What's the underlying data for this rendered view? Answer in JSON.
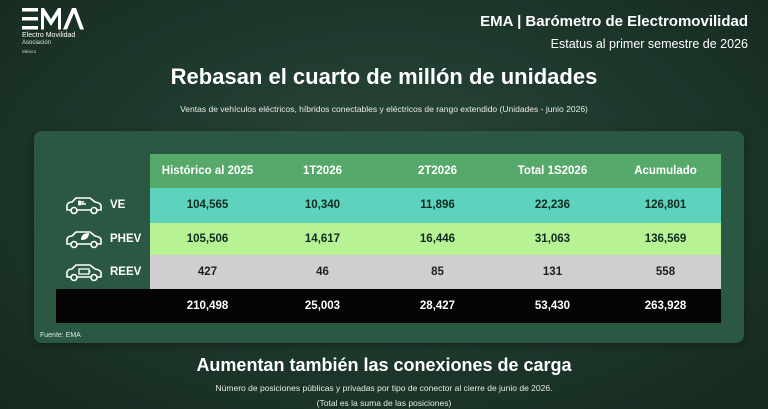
{
  "logo": {
    "name": "EMA",
    "line1": "Electro Movilidad",
    "line2": "Asociación",
    "line3": "México"
  },
  "header": {
    "title": "EMA | Barómetro de Electromovilidad",
    "subtitle": "Estatus al primer semestre de 2026"
  },
  "headline": "Rebasan el cuarto de millón de unidades",
  "subtitle": "Ventas de vehículos eléctricos, híbridos conectables y eléctricos de rango extendido (Unidades - junio 2026)",
  "table": {
    "columns": [
      "Histórico al 2025",
      "1T2026",
      "2T2026",
      "Total 1S2026",
      "Acumulado"
    ],
    "rows": [
      {
        "label": "VE",
        "icon": "ev-car-plug-icon",
        "values": [
          "104,565",
          "10,340",
          "11,896",
          "22,236",
          "126,801"
        ]
      },
      {
        "label": "PHEV",
        "icon": "hybrid-car-leaf-icon",
        "values": [
          "105,506",
          "14,617",
          "16,446",
          "31,063",
          "136,569"
        ]
      },
      {
        "label": "REEV",
        "icon": "range-extender-car-battery-icon",
        "values": [
          "427",
          "46",
          "85",
          "131",
          "558"
        ]
      }
    ],
    "totals": [
      "210,498",
      "25,003",
      "28,427",
      "53,430",
      "263,928"
    ]
  },
  "source": "Fuente: EMA",
  "section2": {
    "title": "Aumentan también las conexiones de carga",
    "subtitle": "Número de posiciones públicas y privadas por tipo de conector al cierre de junio de 2026.",
    "note": "(Total es la suma de las posiciones)"
  },
  "colors": {
    "background": "#1f3a2e",
    "card": "#2a5843",
    "header_row": "#56a96b",
    "ve_row": "#5dd3bd",
    "phev_row": "#b7f294",
    "reev_row": "#cfcfcf",
    "total_row": "#050505"
  }
}
